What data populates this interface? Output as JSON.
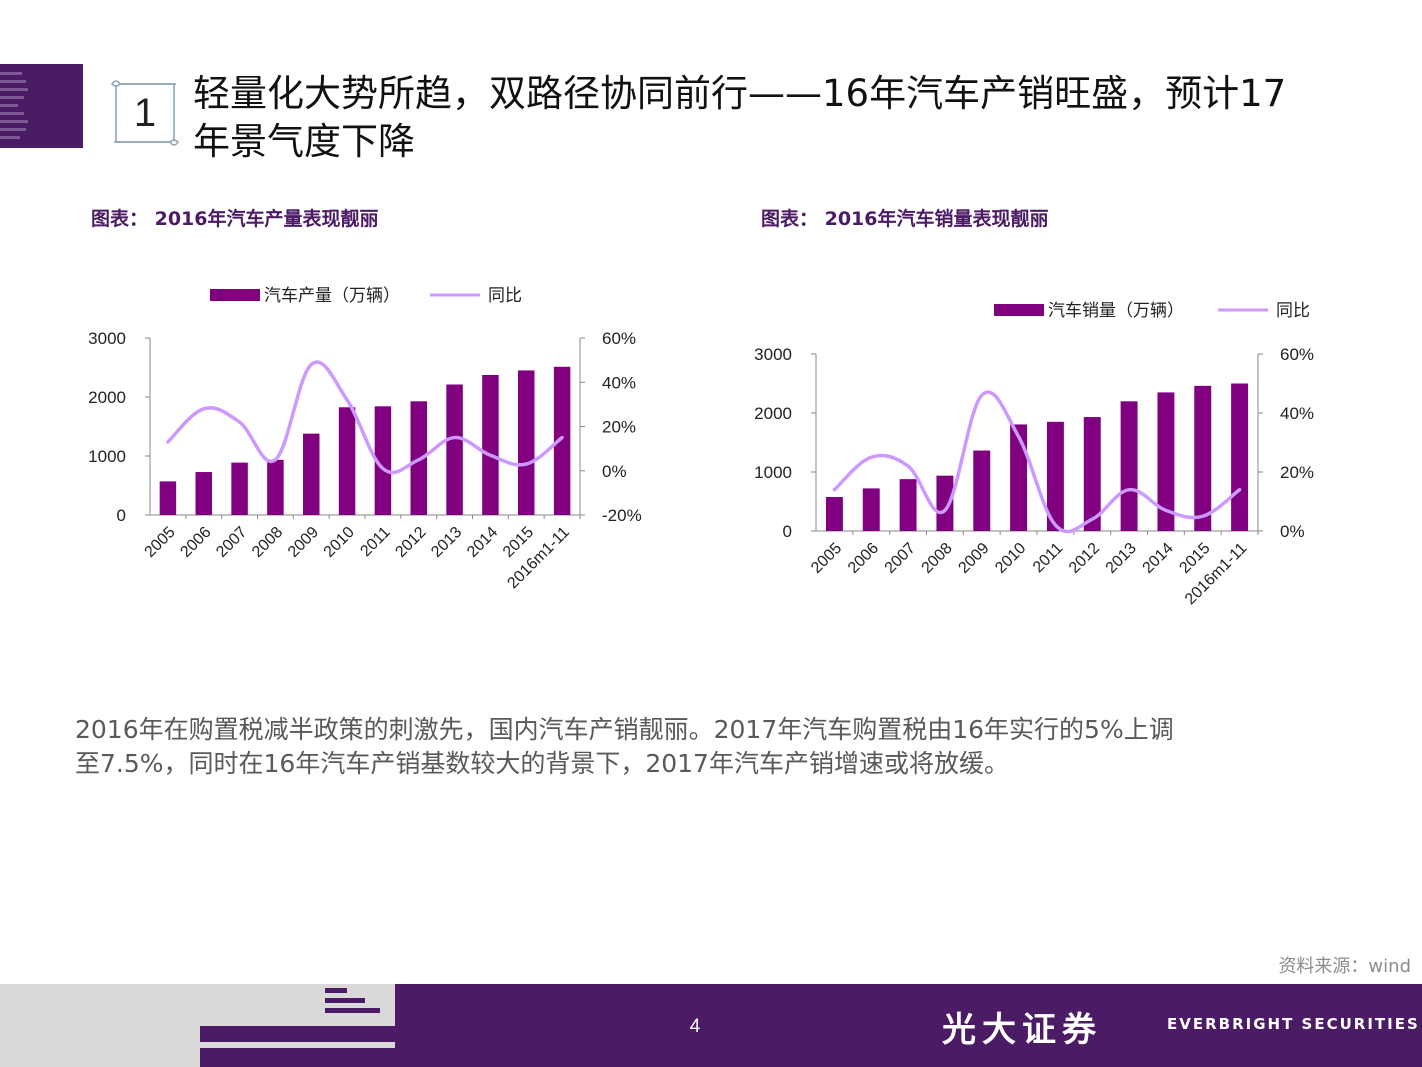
{
  "slide": {
    "section_number": "1",
    "title_line1": "轻量化大势所趋，双路径协同前行——16年汽车产销旺盛，预计17",
    "title_line2": "年景气度下降",
    "body_line1": "2016年在购置税减半政策的刺激先，国内汽车产销靓丽。2017年汽车购置税由16年实行的5%上调",
    "body_line2": "至7.5%，同时在16年汽车产销基数较大的背景下，2017年汽车产销增速或将放缓。",
    "source": "资料来源：wind",
    "page_number": "4",
    "logo_cn": "光大证券",
    "logo_en": "EVERBRIGHT SECURITIES"
  },
  "colors": {
    "bar": "#800080",
    "line": "#cc99ff",
    "brand": "#4b1b66"
  },
  "chart_data": [
    {
      "type": "bar",
      "caption": "图表： 2016年汽车产量表现靓丽",
      "legend_bar": "汽车产量（万辆）",
      "legend_line": "同比",
      "categories": [
        "2005",
        "2006",
        "2007",
        "2008",
        "2009",
        "2010",
        "2011",
        "2012",
        "2013",
        "2014",
        "2015",
        "2016m1-11"
      ],
      "bar_values": [
        570,
        728,
        888,
        934,
        1379,
        1826,
        1842,
        1927,
        2212,
        2373,
        2450,
        2512
      ],
      "line_values": [
        13,
        28,
        22,
        5,
        48,
        32,
        1,
        5,
        15,
        7,
        3,
        15
      ],
      "ylim_left": [
        0,
        3000
      ],
      "yticks_left": [
        "0",
        "1000",
        "2000",
        "3000"
      ],
      "ylim_right": [
        -20,
        60
      ],
      "yticks_right": [
        "-20%",
        "0%",
        "20%",
        "40%",
        "60%"
      ]
    },
    {
      "type": "bar",
      "caption": "图表： 2016年汽车销量表现靓丽",
      "legend_bar": "汽车销量（万辆）",
      "legend_line": "同比",
      "categories": [
        "2005",
        "2006",
        "2007",
        "2008",
        "2009",
        "2010",
        "2011",
        "2012",
        "2013",
        "2014",
        "2015",
        "2016m1-11"
      ],
      "bar_values": [
        576,
        722,
        879,
        938,
        1364,
        1806,
        1851,
        1931,
        2198,
        2349,
        2460,
        2500
      ],
      "line_values": [
        14,
        25,
        22,
        7,
        46,
        32,
        2,
        4,
        14,
        7,
        5,
        14
      ],
      "ylim_left": [
        0,
        3000
      ],
      "yticks_left": [
        "0",
        "1000",
        "2000",
        "3000"
      ],
      "ylim_right": [
        0,
        60
      ],
      "yticks_right": [
        "0%",
        "20%",
        "40%",
        "60%"
      ]
    }
  ]
}
